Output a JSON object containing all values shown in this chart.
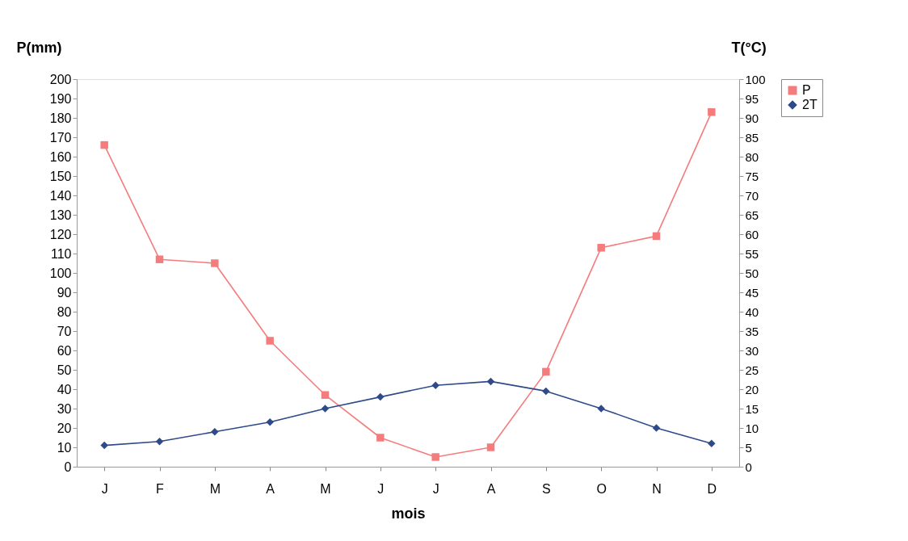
{
  "chart_data": {
    "type": "line",
    "xlabel": "mois",
    "ylabel": "P(mm)",
    "y2label": "T(°C)",
    "categories": [
      "J",
      "F",
      "M",
      "A",
      "M",
      "J",
      "J",
      "A",
      "S",
      "O",
      "N",
      "D"
    ],
    "series": [
      {
        "name": "P",
        "color": "#f47c7c",
        "marker": "square",
        "values": [
          166,
          107,
          105,
          65,
          37,
          15,
          5,
          10,
          49,
          113,
          119,
          183
        ]
      },
      {
        "name": "2T",
        "color": "#2e4a8a",
        "marker": "diamond",
        "values": [
          11,
          13,
          18,
          23,
          30,
          36,
          42,
          44,
          39,
          30,
          20,
          12
        ]
      }
    ],
    "ylim": [
      0,
      200
    ],
    "yticks": [
      0,
      10,
      20,
      30,
      40,
      50,
      60,
      70,
      80,
      90,
      100,
      110,
      120,
      130,
      140,
      150,
      160,
      170,
      180,
      190,
      200
    ],
    "y2lim": [
      0,
      100
    ],
    "y2ticks": [
      0,
      5,
      10,
      15,
      20,
      25,
      30,
      35,
      40,
      45,
      50,
      55,
      60,
      65,
      70,
      75,
      80,
      85,
      90,
      95,
      100
    ],
    "grid": false,
    "legend": "right",
    "line_style": "solid"
  }
}
